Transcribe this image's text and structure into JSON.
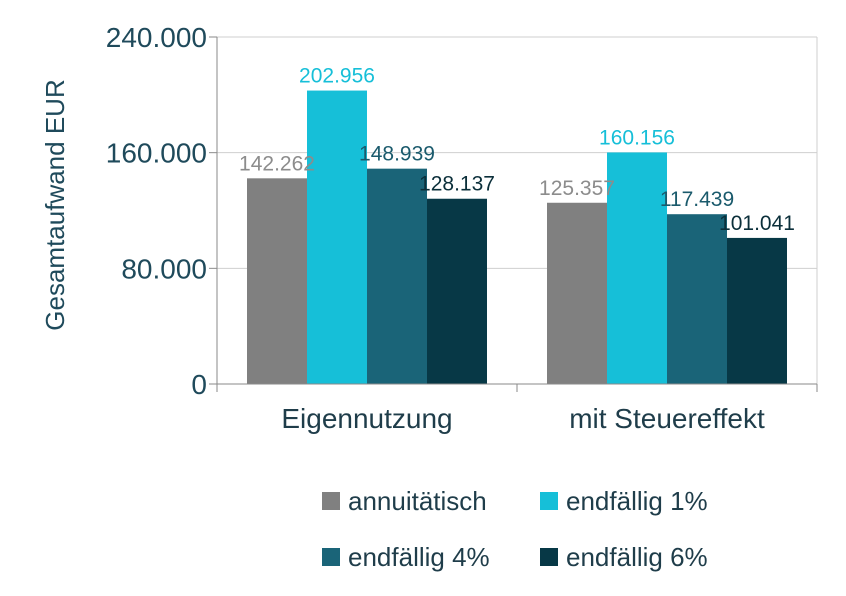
{
  "chart_data": {
    "type": "bar",
    "title": "",
    "xlabel": "",
    "ylabel": "Gesamtaufwand EUR",
    "ylim": [
      0,
      240000
    ],
    "yticks": [
      0,
      80000,
      160000,
      240000
    ],
    "ytick_labels": [
      "0",
      "80.000",
      "160.000",
      "240.000"
    ],
    "grid": true,
    "legend_position": "bottom",
    "categories": [
      "Eigennutzung",
      "mit Steuereffekt"
    ],
    "series": [
      {
        "name": "annuitätisch",
        "color": "#808080",
        "label_color": "#8c8c8c",
        "values": [
          142262,
          125357
        ],
        "value_labels": [
          "142.262",
          "125.357"
        ]
      },
      {
        "name": "endfällig 1%",
        "color": "#16bfd8",
        "label_color": "#16bfd8",
        "values": [
          202956,
          160156
        ],
        "value_labels": [
          "202.956",
          "160.156"
        ]
      },
      {
        "name": "endfällig 4%",
        "color": "#1a6478",
        "label_color": "#1a5a6c",
        "values": [
          148939,
          117439
        ],
        "value_labels": [
          "148.939",
          "117.439"
        ]
      },
      {
        "name": "endfällig 6%",
        "color": "#073846",
        "label_color": "#0b2f3a",
        "values": [
          128137,
          101041
        ],
        "value_labels": [
          "128.137",
          "101.041"
        ]
      }
    ]
  }
}
